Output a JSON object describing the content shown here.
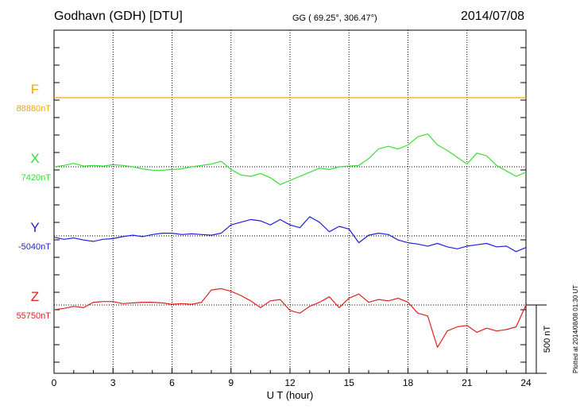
{
  "header": {
    "station": "Godhavn (GDH)  [DTU]",
    "coords": "GG ( 69.25°, 306.47°)",
    "date": "2014/07/08"
  },
  "footer": {
    "xlabel": "U T (hour)",
    "scale_label": "500 nT",
    "plotted": "Plotted at 2014/08/08 01:30 UT"
  },
  "chart_data": {
    "type": "line",
    "title": "Godhavn (GDH)  [DTU]",
    "xlabel": "U T (hour)",
    "ylabel": "",
    "xlim": [
      0,
      24
    ],
    "xticks": [
      0,
      3,
      6,
      9,
      12,
      15,
      18,
      21,
      24
    ],
    "xtick_labels": [
      "0",
      "3",
      "6",
      "9",
      "12",
      "15",
      "18",
      "21",
      "24"
    ],
    "scale_bar_nT": 500,
    "grid": true,
    "series": [
      {
        "name": "F",
        "baseline": "88880nT",
        "baseline_value": 88880,
        "color": "#f5a800",
        "x": [
          0,
          6,
          12,
          18,
          24
        ],
        "deviation": [
          0,
          0,
          0,
          0,
          0
        ]
      },
      {
        "name": "X",
        "baseline": "7420nT",
        "baseline_value": 7420,
        "color": "#33e033",
        "x": [
          0,
          0.5,
          1,
          1.5,
          2,
          2.5,
          3,
          3.5,
          4,
          4.5,
          5,
          5.5,
          6,
          6.5,
          7,
          7.5,
          8,
          8.5,
          9,
          9.5,
          10,
          10.5,
          11,
          11.5,
          12,
          12.5,
          13,
          13.5,
          14,
          14.5,
          15,
          15.5,
          16,
          16.5,
          17,
          17.5,
          18,
          18.5,
          19,
          19.5,
          20,
          20.5,
          21,
          21.5,
          22,
          22.5,
          23,
          23.5,
          24
        ],
        "deviation": [
          0,
          10,
          25,
          5,
          10,
          5,
          15,
          10,
          0,
          -15,
          -25,
          -25,
          -20,
          -15,
          0,
          10,
          20,
          40,
          -20,
          -60,
          -70,
          -50,
          -80,
          -130,
          -100,
          -70,
          -40,
          -10,
          -20,
          0,
          5,
          10,
          60,
          130,
          150,
          130,
          160,
          220,
          240,
          160,
          120,
          70,
          20,
          100,
          80,
          10,
          -30,
          -70,
          -40
        ]
      },
      {
        "name": "Y",
        "baseline": "-5040nT",
        "baseline_value": -5040,
        "color": "#2020dd",
        "x": [
          0,
          0.5,
          1,
          1.5,
          2,
          2.5,
          3,
          3.5,
          4,
          4.5,
          5,
          5.5,
          6,
          6.5,
          7,
          7.5,
          8,
          8.5,
          9,
          9.5,
          10,
          10.5,
          11,
          11.5,
          12,
          12.5,
          13,
          13.5,
          14,
          14.5,
          15,
          15.5,
          16,
          16.5,
          17,
          17.5,
          18,
          18.5,
          19,
          19.5,
          20,
          20.5,
          21,
          21.5,
          22,
          22.5,
          23,
          23.5,
          24
        ],
        "deviation": [
          -10,
          -25,
          -15,
          -30,
          -40,
          -25,
          -20,
          -5,
          5,
          -5,
          10,
          20,
          20,
          10,
          15,
          10,
          5,
          20,
          80,
          100,
          120,
          110,
          80,
          120,
          80,
          60,
          140,
          100,
          30,
          70,
          50,
          -50,
          5,
          20,
          10,
          -30,
          -50,
          -60,
          -75,
          -55,
          -80,
          -95,
          -75,
          -65,
          -55,
          -80,
          -75,
          -115,
          -85
        ]
      },
      {
        "name": "Z",
        "baseline": "55750nT",
        "baseline_value": 55750,
        "color": "#e02020",
        "x": [
          0,
          0.5,
          1,
          1.5,
          2,
          2.5,
          3,
          3.5,
          4,
          4.5,
          5,
          5.5,
          6,
          6.5,
          7,
          7.5,
          8,
          8.5,
          9,
          9.5,
          10,
          10.5,
          11,
          11.5,
          12,
          12.5,
          13,
          13.5,
          14,
          14.5,
          15,
          15.5,
          16,
          16.5,
          17,
          17.5,
          18,
          18.5,
          19,
          19.5,
          20,
          20.5,
          21,
          21.5,
          22,
          22.5,
          23,
          23.5,
          24
        ],
        "deviation": [
          -35,
          -25,
          -10,
          -20,
          20,
          25,
          25,
          10,
          15,
          20,
          20,
          15,
          5,
          10,
          5,
          20,
          110,
          120,
          100,
          70,
          30,
          -20,
          30,
          40,
          -40,
          -60,
          -10,
          20,
          60,
          -20,
          50,
          80,
          20,
          40,
          30,
          50,
          20,
          -60,
          -80,
          -310,
          -190,
          -160,
          -150,
          -200,
          -170,
          -190,
          -180,
          -160,
          0
        ]
      }
    ]
  }
}
